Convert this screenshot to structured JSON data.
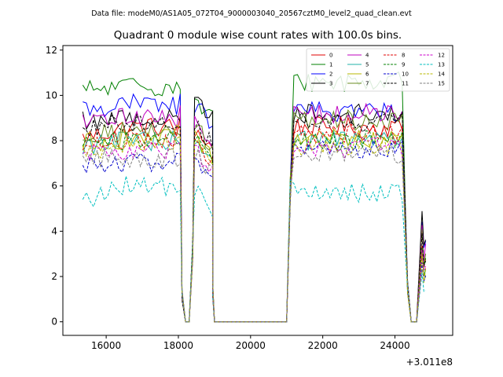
{
  "suptitle": "Data file: modeM0/AS1A05_072T04_9000003040_20567cztM0_level2_quad_clean.evt",
  "chart_data": {
    "type": "line",
    "title": "Quadrant 0 module wise count rates with 100.0s bins.",
    "xlabel": "",
    "ylabel": "",
    "x_offset_label": "+3.011e8",
    "xlim": [
      14800,
      25600
    ],
    "ylim": [
      -0.6,
      12.2
    ],
    "x_ticks": [
      16000,
      18000,
      20000,
      22000,
      24000
    ],
    "y_ticks": [
      0,
      2,
      4,
      6,
      8,
      10,
      12
    ],
    "legend_location": "upper right",
    "bin_width_s": 100,
    "segments": [
      {
        "x_start": 15350,
        "x_end": 18050,
        "gap_start": 18000,
        "gap_end": 18450
      },
      {
        "x_start": 18450,
        "x_end": 19000,
        "gap_start": 19000,
        "gap_end": 21050
      },
      {
        "x_start": 21050,
        "x_end": 24250,
        "gap_start": 24250,
        "gap_end": 24650
      },
      {
        "x_start": 24650,
        "x_end": 24850
      }
    ],
    "series": [
      {
        "name": "0",
        "color": "#e00000",
        "dash": "solid",
        "base": 8.1,
        "rates": {
          "seg1": 8.6,
          "seg2": 8.5,
          "seg3": 8.6,
          "seg4": 3.6
        }
      },
      {
        "name": "1",
        "color": "#008000",
        "dash": "solid",
        "base": 10.2,
        "rates": {
          "seg1": 10.4,
          "seg2": 9.8,
          "seg3": 10.6,
          "seg4": 3.3
        }
      },
      {
        "name": "2",
        "color": "#0000ff",
        "dash": "solid",
        "base": 9.4,
        "rates": {
          "seg1": 9.6,
          "seg2": 9.6,
          "seg3": 9.3,
          "seg4": 4.5
        }
      },
      {
        "name": "3",
        "color": "#000000",
        "dash": "solid",
        "base": 8.9,
        "rates": {
          "seg1": 9.0,
          "seg2": 9.9,
          "seg3": 9.2,
          "seg4": 4.9
        }
      },
      {
        "name": "4",
        "color": "#bf00bf",
        "dash": "solid",
        "base": 8.7,
        "rates": {
          "seg1": 9.1,
          "seg2": 8.7,
          "seg3": 9.2,
          "seg4": 4.2
        }
      },
      {
        "name": "5",
        "color": "#20b2aa",
        "dash": "solid",
        "base": 7.8,
        "rates": {
          "seg1": 8.0,
          "seg2": 7.9,
          "seg3": 8.0,
          "seg4": 3.0
        }
      },
      {
        "name": "6",
        "color": "#b8b800",
        "dash": "solid",
        "base": 7.9,
        "rates": {
          "seg1": 8.1,
          "seg2": 8.1,
          "seg3": 8.1,
          "seg4": 2.9
        }
      },
      {
        "name": "7",
        "color": "#6b8e23",
        "dash": "solid",
        "base": 8.3,
        "rates": {
          "seg1": 8.4,
          "seg2": 8.6,
          "seg3": 8.9,
          "seg4": 3.8
        }
      },
      {
        "name": "8",
        "color": "#e00000",
        "dash": "dashed",
        "base": 7.8,
        "rates": {
          "seg1": 8.1,
          "seg2": 7.8,
          "seg3": 8.3,
          "seg4": 3.2
        }
      },
      {
        "name": "9",
        "color": "#008000",
        "dash": "dashed",
        "base": 7.9,
        "rates": {
          "seg1": 8.0,
          "seg2": 8.1,
          "seg3": 8.0,
          "seg4": 3.4
        }
      },
      {
        "name": "10",
        "color": "#0000cc",
        "dash": "dashed",
        "base": 7.0,
        "rates": {
          "seg1": 7.0,
          "seg2": 7.0,
          "seg3": 7.6,
          "seg4": 2.7
        }
      },
      {
        "name": "11",
        "color": "#000000",
        "dash": "dashed",
        "base": 8.6,
        "rates": {
          "seg1": 8.8,
          "seg2": 8.7,
          "seg3": 8.8,
          "seg4": 3.9
        }
      },
      {
        "name": "12",
        "color": "#cc00cc",
        "dash": "dashed",
        "base": 7.4,
        "rates": {
          "seg1": 7.5,
          "seg2": 7.6,
          "seg3": 7.7,
          "seg4": 3.1
        }
      },
      {
        "name": "13",
        "color": "#00bfbf",
        "dash": "dashed",
        "base": 5.3,
        "rates": {
          "seg1": 6.0,
          "seg2": 5.8,
          "seg3": 5.7,
          "seg4": 2.0
        }
      },
      {
        "name": "14",
        "color": "#b8b800",
        "dash": "dashed",
        "base": 7.6,
        "rates": {
          "seg1": 7.8,
          "seg2": 7.8,
          "seg3": 7.8,
          "seg4": 2.8
        }
      },
      {
        "name": "15",
        "color": "#808080",
        "dash": "dashed",
        "base": 7.1,
        "rates": {
          "seg1": 7.2,
          "seg2": 7.4,
          "seg3": 7.4,
          "seg4": 2.6
        }
      }
    ]
  }
}
